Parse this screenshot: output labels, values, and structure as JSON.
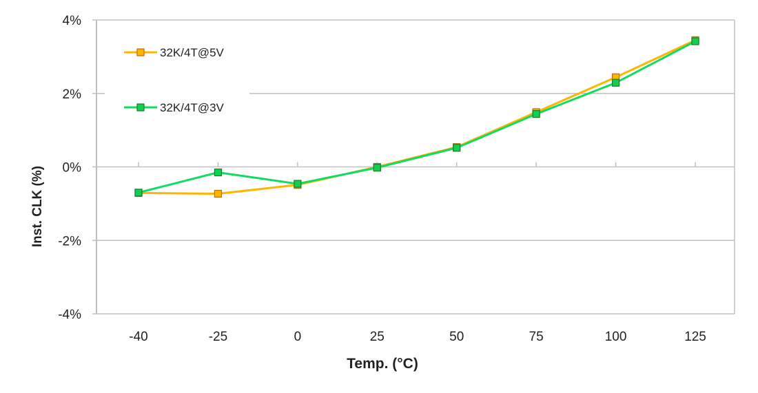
{
  "chart_data": {
    "type": "line",
    "title": "",
    "xlabel": "Temp. (°C)",
    "ylabel": "Inst. CLK (%)",
    "categories": [
      "-40",
      "-25",
      "0",
      "25",
      "50",
      "75",
      "100",
      "125"
    ],
    "ylim": [
      -4,
      4
    ],
    "yticks": [
      -4,
      -2,
      0,
      2,
      4
    ],
    "ytick_labels": [
      "-4%",
      "-2%",
      "0%",
      "2%",
      "4%"
    ],
    "grid": true,
    "legend_position": "top-left",
    "series": [
      {
        "name": "32K/4T@5V",
        "color": "#FFB400",
        "marker_fill": "#FFB400",
        "marker_edge": "#C07000",
        "values": [
          -0.71,
          -0.73,
          -0.49,
          0.0,
          0.54,
          1.49,
          2.44,
          3.45
        ]
      },
      {
        "name": "32K/4T@3V",
        "color": "#10DC60",
        "marker_fill": "#10D050",
        "marker_edge": "#1A7A2A",
        "values": [
          -0.7,
          -0.15,
          -0.46,
          -0.02,
          0.52,
          1.44,
          2.29,
          3.42
        ]
      }
    ]
  }
}
